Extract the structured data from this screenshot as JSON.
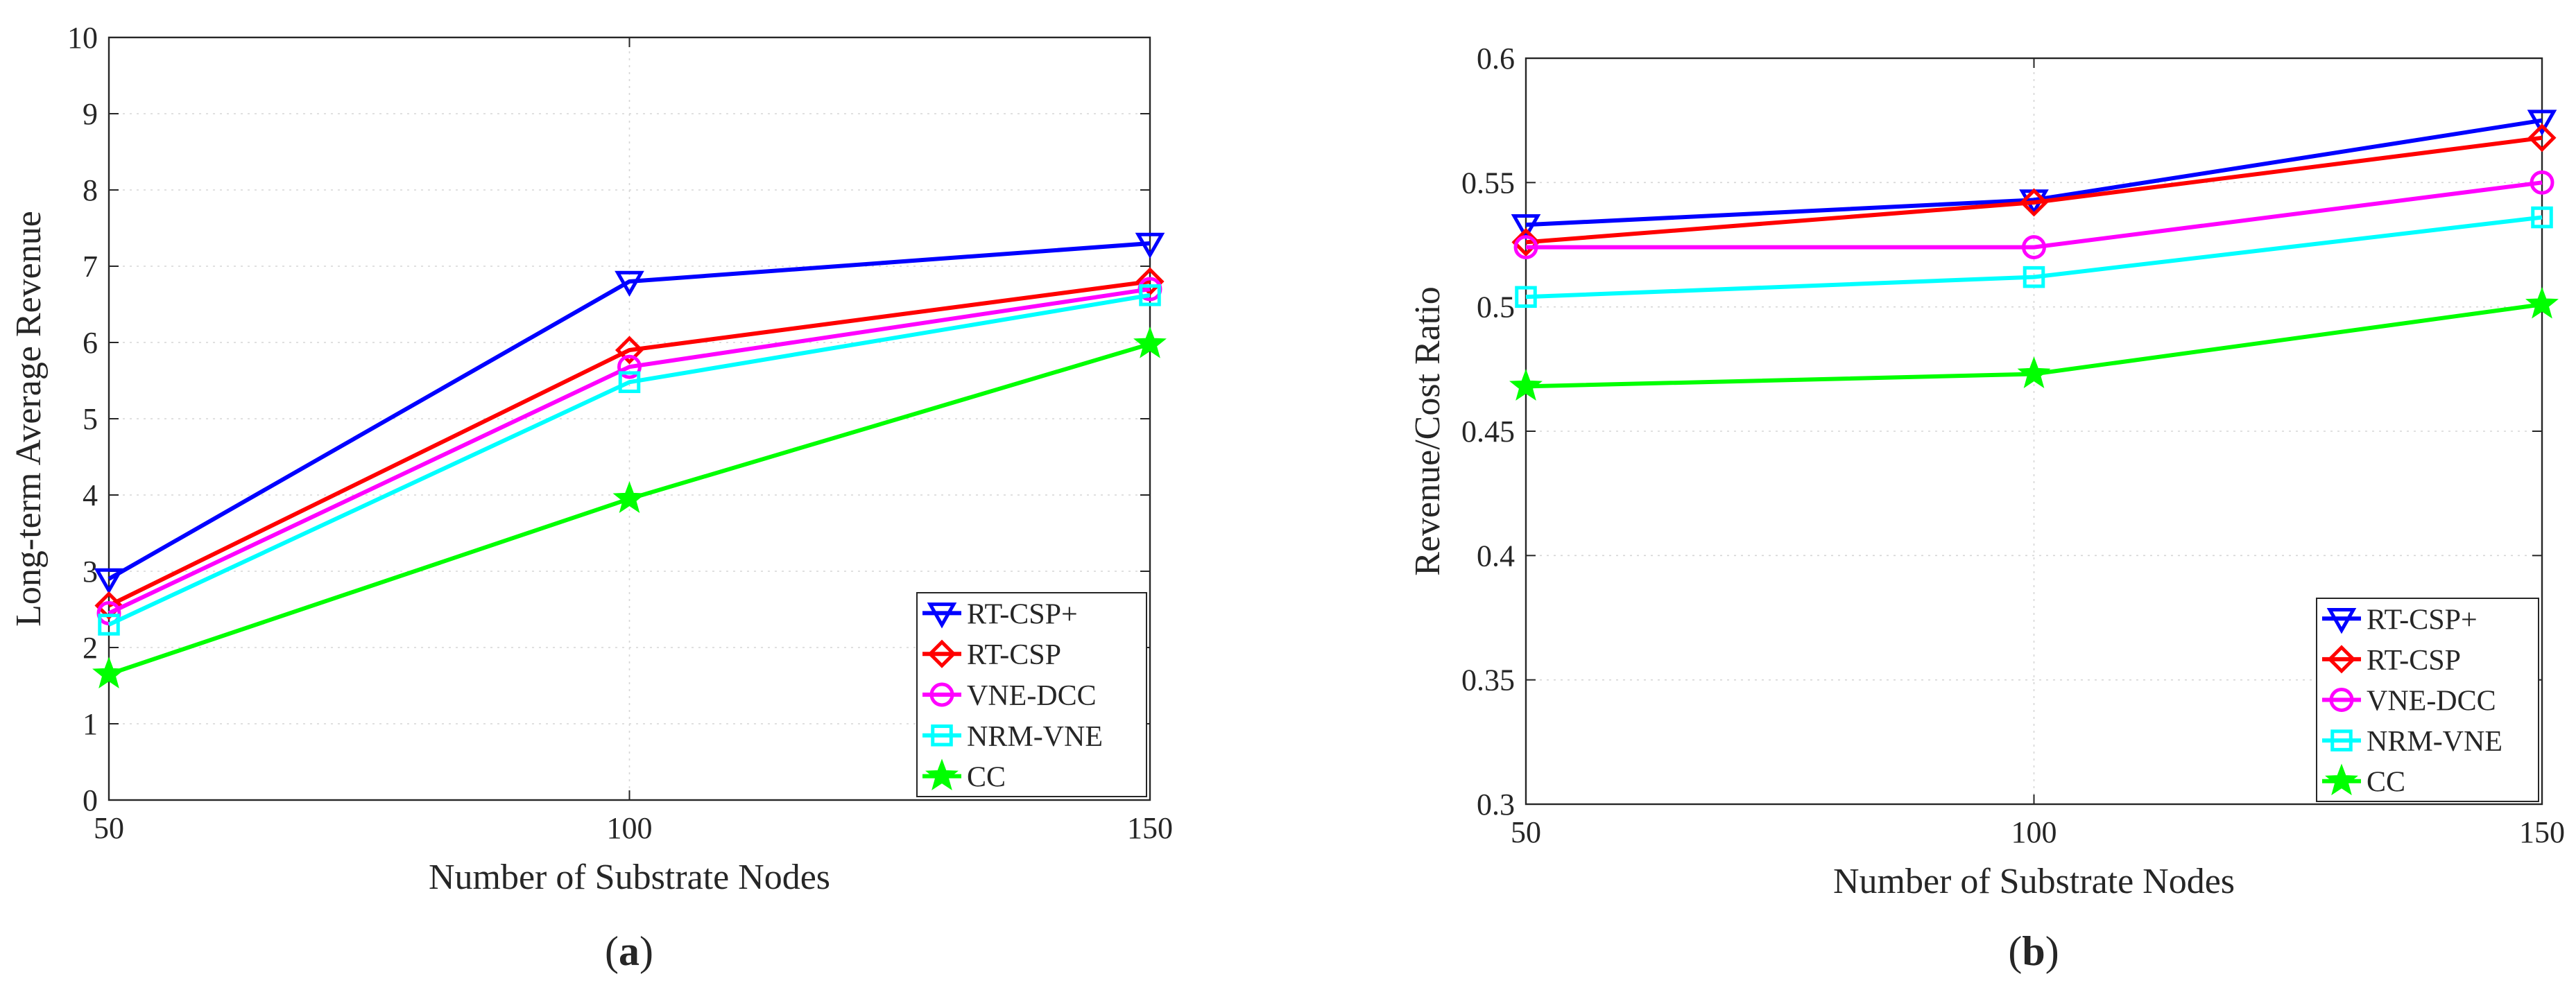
{
  "chart_data": [
    {
      "type": "line",
      "caption": "(a)",
      "caption_letter": "a",
      "title": "",
      "xlabel": "Number of Substrate Nodes",
      "ylabel": "Long-term Average Revenue",
      "xlim": [
        50,
        150
      ],
      "ylim": [
        0,
        10
      ],
      "xticks": [
        50,
        100,
        150
      ],
      "xtick_labels": [
        "50",
        "100",
        "150"
      ],
      "yticks": [
        0,
        1,
        2,
        3,
        4,
        5,
        6,
        7,
        8,
        9,
        10
      ],
      "ytick_labels": [
        "0",
        "1",
        "2",
        "3",
        "4",
        "5",
        "6",
        "7",
        "8",
        "9",
        "10"
      ],
      "grid": true,
      "legend_position": "bottom-right",
      "x": [
        50,
        100,
        150
      ],
      "series": [
        {
          "name": "RT-CSP+",
          "color": "#0000ff",
          "marker": "triangle-down",
          "values": [
            2.9,
            6.8,
            7.3
          ]
        },
        {
          "name": "RT-CSP",
          "color": "#ff0000",
          "marker": "diamond",
          "values": [
            2.55,
            5.9,
            6.8
          ]
        },
        {
          "name": "VNE-DCC",
          "color": "#ff00ff",
          "marker": "circle",
          "values": [
            2.45,
            5.68,
            6.7
          ]
        },
        {
          "name": "NRM-VNE",
          "color": "#00ffff",
          "marker": "square",
          "values": [
            2.3,
            5.48,
            6.62
          ]
        },
        {
          "name": "CC",
          "color": "#00ff00",
          "marker": "star",
          "values": [
            1.65,
            3.95,
            5.98
          ]
        }
      ]
    },
    {
      "type": "line",
      "caption": "(b)",
      "caption_letter": "b",
      "title": "",
      "xlabel": "Number of Substrate Nodes",
      "ylabel": "Revenue/Cost Ratio",
      "xlim": [
        50,
        150
      ],
      "ylim": [
        0.3,
        0.6
      ],
      "xticks": [
        50,
        100,
        150
      ],
      "xtick_labels": [
        "50",
        "100",
        "150"
      ],
      "yticks": [
        0.3,
        0.35,
        0.4,
        0.45,
        0.5,
        0.55,
        0.6
      ],
      "ytick_labels": [
        "0.3",
        "0.35",
        "0.4",
        "0.45",
        "0.5",
        "0.55",
        "0.6"
      ],
      "grid": true,
      "legend_position": "bottom-right",
      "x": [
        50,
        100,
        150
      ],
      "series": [
        {
          "name": "RT-CSP+",
          "color": "#0000ff",
          "marker": "triangle-down",
          "values": [
            0.533,
            0.543,
            0.575
          ]
        },
        {
          "name": "RT-CSP",
          "color": "#ff0000",
          "marker": "diamond",
          "values": [
            0.526,
            0.542,
            0.568
          ]
        },
        {
          "name": "VNE-DCC",
          "color": "#ff00ff",
          "marker": "circle",
          "values": [
            0.524,
            0.524,
            0.55
          ]
        },
        {
          "name": "NRM-VNE",
          "color": "#00ffff",
          "marker": "square",
          "values": [
            0.504,
            0.512,
            0.536
          ]
        },
        {
          "name": "CC",
          "color": "#00ff00",
          "marker": "star",
          "values": [
            0.468,
            0.473,
            0.501
          ]
        }
      ]
    }
  ]
}
